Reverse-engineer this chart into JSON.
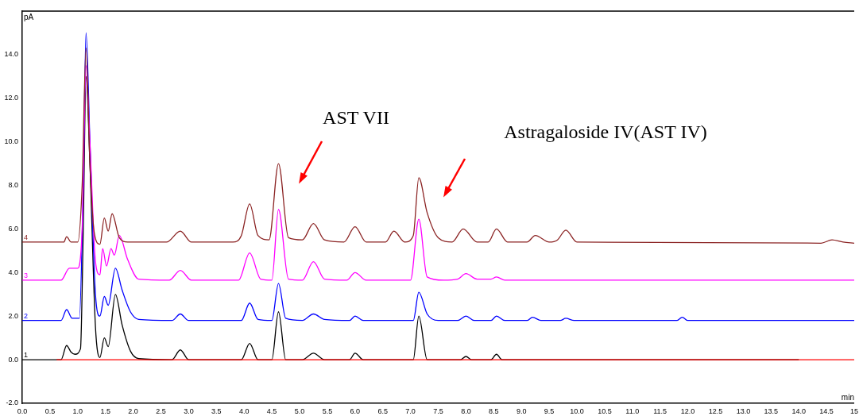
{
  "chart_data": {
    "type": "line",
    "xlabel": "min",
    "ylabel": "pA",
    "xlim": [
      0,
      15
    ],
    "ylim": [
      -2,
      16
    ],
    "xticks": [
      {
        "value": 0,
        "label": "0.0"
      },
      {
        "value": 0.5,
        "label": "0.5"
      },
      {
        "value": 1,
        "label": "1.0"
      },
      {
        "value": 1.5,
        "label": "1.5"
      },
      {
        "value": 2,
        "label": "2.0"
      },
      {
        "value": 2.5,
        "label": "2.5"
      },
      {
        "value": 3,
        "label": "3.0"
      },
      {
        "value": 3.5,
        "label": "3.5"
      },
      {
        "value": 4,
        "label": "4.0"
      },
      {
        "value": 4.5,
        "label": "4.5"
      },
      {
        "value": 5,
        "label": "5.0"
      },
      {
        "value": 5.5,
        "label": "5.5"
      },
      {
        "value": 6,
        "label": "6.0"
      },
      {
        "value": 6.5,
        "label": "6.5"
      },
      {
        "value": 7,
        "label": "7.0"
      },
      {
        "value": 7.5,
        "label": "7.5"
      },
      {
        "value": 8,
        "label": "8.0"
      },
      {
        "value": 8.5,
        "label": "8.5"
      },
      {
        "value": 9,
        "label": "9.0"
      },
      {
        "value": 9.5,
        "label": "9.5"
      },
      {
        "value": 10,
        "label": "10.0"
      },
      {
        "value": 10.5,
        "label": "10.5"
      },
      {
        "value": 11,
        "label": "11.0"
      },
      {
        "value": 11.5,
        "label": "11.5"
      },
      {
        "value": 12,
        "label": "12.0"
      },
      {
        "value": 12.5,
        "label": "12.5"
      },
      {
        "value": 13,
        "label": "13.0"
      },
      {
        "value": 13.5,
        "label": "13.5"
      },
      {
        "value": 14,
        "label": "14.0"
      },
      {
        "value": 14.5,
        "label": "14.5"
      },
      {
        "value": 15,
        "label": "15"
      }
    ],
    "yticks": [
      {
        "value": -2,
        "label": "-2.0"
      },
      {
        "value": 0,
        "label": "0.0"
      },
      {
        "value": 2,
        "label": "2.0"
      },
      {
        "value": 4,
        "label": "4.0"
      },
      {
        "value": 6,
        "label": "6.0"
      },
      {
        "value": 8,
        "label": "8.0"
      },
      {
        "value": 10,
        "label": "10.0"
      },
      {
        "value": 12,
        "label": "12.0"
      },
      {
        "value": 14,
        "label": "14.0"
      }
    ],
    "grid": false,
    "legend": false,
    "marker": "none",
    "line_style": "solid",
    "series": [
      {
        "color": "#ff0000",
        "x": [
          0.62,
          15
        ],
        "values": [
          0,
          0
        ]
      },
      {
        "name": "4",
        "color": "#8b2323",
        "x": [
          0,
          0.75,
          0.8,
          0.88,
          1.0,
          1.08,
          1.15,
          1.22,
          1.3,
          1.4,
          1.48,
          1.55,
          1.62,
          1.75,
          1.9,
          2.6,
          2.85,
          3.05,
          3.8,
          3.95,
          4.1,
          4.25,
          4.45,
          4.62,
          4.8,
          5.05,
          5.25,
          5.45,
          5.8,
          6.0,
          6.2,
          6.55,
          6.7,
          6.9,
          7.05,
          7.15,
          7.3,
          7.5,
          7.75,
          7.95,
          8.2,
          8.4,
          8.55,
          8.75,
          9.1,
          9.25,
          9.5,
          9.65,
          9.8,
          10.0,
          14.4,
          14.6,
          14.8,
          15
        ],
        "values": [
          5.4,
          5.4,
          5.65,
          5.4,
          5.4,
          8.0,
          14.3,
          9.0,
          5.8,
          5.3,
          6.5,
          5.9,
          6.7,
          5.6,
          5.4,
          5.4,
          5.9,
          5.4,
          5.4,
          5.7,
          7.15,
          5.7,
          5.5,
          9.0,
          5.6,
          5.5,
          6.25,
          5.5,
          5.4,
          6.1,
          5.4,
          5.4,
          5.9,
          5.4,
          5.7,
          8.35,
          6.75,
          5.6,
          5.4,
          6.0,
          5.4,
          5.4,
          6.0,
          5.4,
          5.4,
          5.7,
          5.4,
          5.5,
          5.95,
          5.4,
          5.35,
          5.5,
          5.4,
          5.35
        ]
      },
      {
        "name": "3",
        "color": "#ff00ff",
        "x": [
          0,
          0.7,
          0.85,
          1.0,
          1.08,
          1.15,
          1.22,
          1.32,
          1.4,
          1.45,
          1.52,
          1.6,
          1.66,
          1.75,
          1.9,
          2.1,
          2.65,
          2.85,
          3.05,
          3.9,
          4.1,
          4.3,
          4.5,
          4.62,
          4.8,
          5.05,
          5.25,
          5.45,
          5.85,
          6.0,
          6.2,
          7.0,
          7.15,
          7.3,
          7.6,
          7.85,
          8.0,
          8.2,
          8.45,
          8.55,
          8.7,
          15
        ],
        "values": [
          3.65,
          3.65,
          4.2,
          4.2,
          6.0,
          13.5,
          10.0,
          4.5,
          3.9,
          5.1,
          4.3,
          5.1,
          4.8,
          5.7,
          4.6,
          3.7,
          3.65,
          4.1,
          3.65,
          3.65,
          4.9,
          3.7,
          3.65,
          6.9,
          3.7,
          3.65,
          4.5,
          3.7,
          3.65,
          4.0,
          3.65,
          3.65,
          6.45,
          3.8,
          3.65,
          3.7,
          3.95,
          3.7,
          3.7,
          3.8,
          3.65,
          3.65
        ]
      },
      {
        "name": "2",
        "color": "#0000ff",
        "x": [
          0,
          0.7,
          0.8,
          0.9,
          1.03,
          1.1,
          1.15,
          1.22,
          1.32,
          1.4,
          1.48,
          1.55,
          1.68,
          1.8,
          1.95,
          2.1,
          2.7,
          2.85,
          3.0,
          3.95,
          4.1,
          4.25,
          4.5,
          4.62,
          4.75,
          5.05,
          5.25,
          5.45,
          5.9,
          6.0,
          6.15,
          7.05,
          7.15,
          7.3,
          7.5,
          7.85,
          8.0,
          8.15,
          8.45,
          8.55,
          8.7,
          9.1,
          9.2,
          9.35,
          9.7,
          9.8,
          9.95,
          11.8,
          11.9,
          12.0,
          15
        ],
        "values": [
          1.8,
          1.8,
          2.3,
          1.9,
          1.9,
          8.0,
          15.0,
          10.0,
          3.0,
          2.0,
          2.9,
          2.5,
          4.2,
          3.2,
          2.2,
          1.85,
          1.8,
          2.1,
          1.8,
          1.8,
          2.6,
          1.85,
          1.8,
          3.5,
          1.9,
          1.8,
          2.1,
          1.85,
          1.8,
          2.0,
          1.8,
          1.8,
          3.1,
          2.1,
          1.8,
          1.8,
          2.0,
          1.8,
          1.8,
          2.0,
          1.8,
          1.8,
          1.95,
          1.8,
          1.8,
          1.9,
          1.8,
          1.8,
          1.95,
          1.8,
          1.8
        ]
      },
      {
        "name": "1",
        "color": "#000000",
        "x": [
          0,
          0.7,
          0.8,
          0.88,
          0.95,
          1.05,
          1.1,
          1.15,
          1.22,
          1.32,
          1.4,
          1.48,
          1.55,
          1.68,
          1.8,
          1.95,
          2.1,
          2.7,
          2.85,
          3.0,
          3.95,
          4.1,
          4.25,
          4.5,
          4.62,
          4.75,
          5.05,
          5.25,
          5.45,
          5.9,
          6.0,
          6.15,
          7.05,
          7.15,
          7.3,
          7.9,
          8.0,
          8.1,
          8.45,
          8.55,
          8.65,
          14.0
        ],
        "values": [
          0,
          0,
          0.65,
          0.35,
          0.25,
          0.5,
          6.0,
          13.0,
          9.0,
          1.5,
          0.1,
          1.0,
          0.6,
          3.0,
          1.6,
          0.4,
          0.05,
          0,
          0.45,
          0,
          0,
          0.75,
          0,
          0,
          2.2,
          0,
          0,
          0.3,
          0,
          0,
          0.3,
          0,
          0,
          2.0,
          0,
          0,
          0.15,
          0,
          0,
          0.25,
          0,
          0
        ]
      }
    ],
    "annotations": [
      "AST VII",
      "Astragaloside IV(AST IV)"
    ]
  }
}
